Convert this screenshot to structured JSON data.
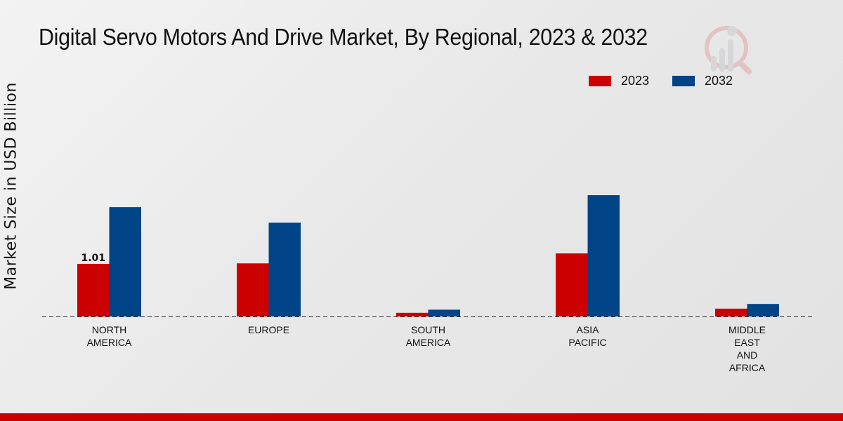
{
  "chart_data": {
    "type": "bar",
    "title": "Digital Servo Motors And Drive Market, By Regional, 2023 & 2032",
    "xlabel": "",
    "ylabel": "Market Size in USD Billion",
    "ylim": [
      0,
      4.73
    ],
    "grid": false,
    "legend_position": "top-right",
    "categories": [
      "NORTH\nAMERICA",
      "EUROPE",
      "SOUTH\nAMERICA",
      "ASIA\nPACIFIC",
      "MIDDLE\nEAST\nAND\nAFRICA"
    ],
    "series": [
      {
        "name": "2023",
        "color": "#cc0000",
        "values": [
          1.01,
          1.02,
          0.07,
          1.21,
          0.15
        ]
      },
      {
        "name": "2032",
        "color": "#004488",
        "values": [
          2.1,
          1.8,
          0.13,
          2.33,
          0.24
        ]
      }
    ],
    "data_labels": [
      {
        "series": 0,
        "index": 0,
        "text": "1.01"
      }
    ]
  }
}
